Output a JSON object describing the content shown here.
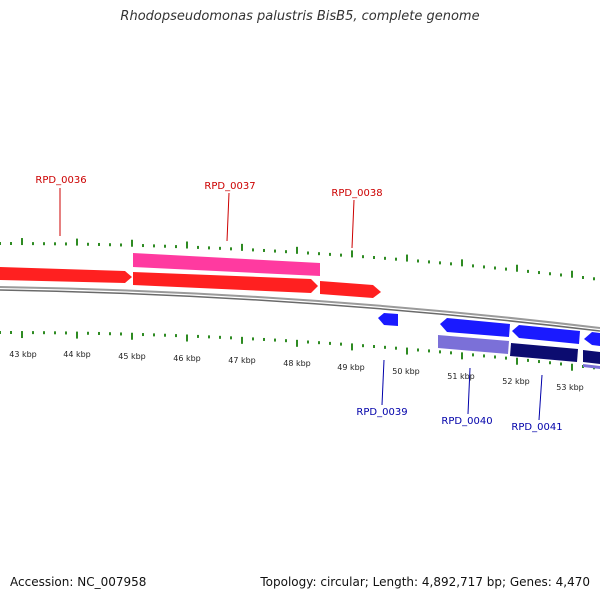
{
  "title": "Rhodopseudomonas palustris BisB5, complete genome",
  "footer": {
    "accession": "Accession: NC_007958",
    "summary": "Topology: circular; Length: 4,892,717 bp; Genes: 4,470"
  },
  "colors": {
    "backbone": "#8c8c8c",
    "tick": "#2e8b22",
    "forward_gene": "#ff2020",
    "forward_highlight": "#ff3aa0",
    "reverse_gene": "#1a1aff",
    "reverse_light": "#7b70d8",
    "reverse_dark": "#0c0c70",
    "forward_label": "#cc0000",
    "reverse_label": "#0000aa"
  },
  "scale_labels": [
    "43 kbp",
    "44 kbp",
    "45 kbp",
    "46 kbp",
    "47 kbp",
    "48 kbp",
    "49 kbp",
    "50 kbp",
    "51 kbp",
    "52 kbp",
    "53 kbp"
  ],
  "gene_labels": [
    {
      "text": "RPD_0036",
      "strand": "forward"
    },
    {
      "text": "RPD_0037",
      "strand": "forward"
    },
    {
      "text": "RPD_0038",
      "strand": "forward"
    },
    {
      "text": "RPD_0039",
      "strand": "reverse"
    },
    {
      "text": "RPD_0040",
      "strand": "reverse"
    },
    {
      "text": "RPD_0041",
      "strand": "reverse"
    }
  ]
}
